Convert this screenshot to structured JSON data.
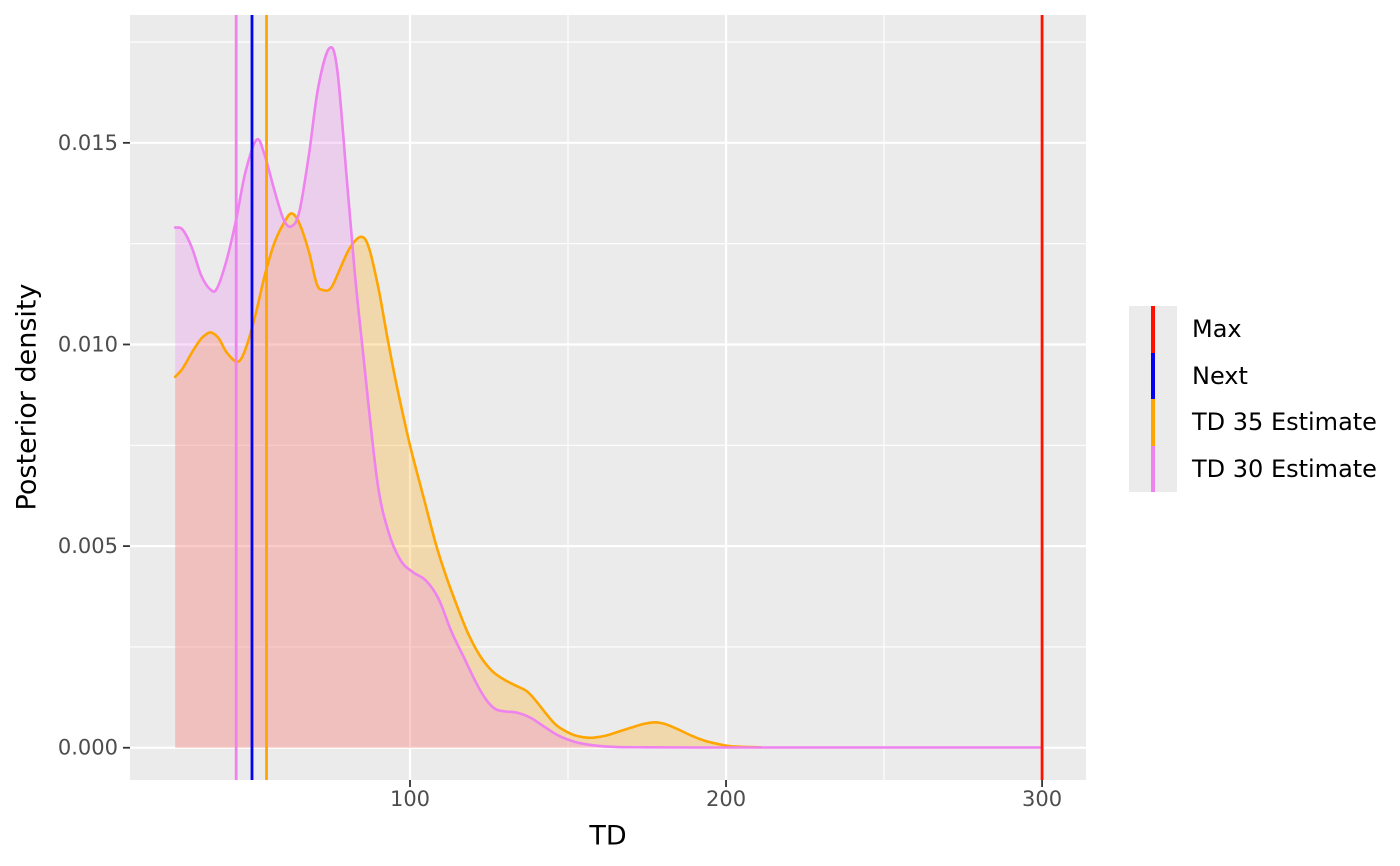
{
  "figure": {
    "x_axis": {
      "title": "TD",
      "tick_labels": [
        "100",
        "200",
        "300"
      ]
    },
    "y_axis": {
      "title": "Posterior density",
      "tick_labels": [
        "0.000",
        "0.005",
        "0.010",
        "0.015"
      ]
    }
  },
  "legend": {
    "entries": [
      {
        "label": "Max",
        "color": "#FF1100"
      },
      {
        "label": "Next",
        "color": "#0202EE"
      },
      {
        "label": "TD 35 Estimate",
        "color": "#FFA502"
      },
      {
        "label": "TD 30 Estimate",
        "color": "#EE82EE"
      }
    ],
    "key_background": "#EBEBEB"
  },
  "colors": {
    "panel_background": "#EBEBEB",
    "gridline": "#FFFFFF",
    "axis_text": "#4D4D4D",
    "tick_mark": "#333333",
    "outer_background": "#FFFFFF"
  },
  "chart_data": {
    "type": "area",
    "title": "",
    "xlabel": "TD",
    "ylabel": "Posterior density",
    "xlim": [
      11.4,
      313.9
    ],
    "ylim": [
      -0.0008,
      0.01817
    ],
    "x_breaks": [
      100,
      200,
      300
    ],
    "x_minor_breaks": [
      50,
      150,
      250
    ],
    "y_breaks": [
      0,
      0.005,
      0.01,
      0.015
    ],
    "y_minor_breaks": [
      0.0025,
      0.0075,
      0.0125,
      0.0175
    ],
    "grid": true,
    "legend_position": "right",
    "vlines": [
      {
        "name": "Max",
        "x": 300,
        "color": "#FF1100"
      },
      {
        "name": "Next",
        "x": 50,
        "color": "#0202EE"
      },
      {
        "name": "TD 35 Estimate",
        "x": 54.6,
        "color": "#FFA502"
      },
      {
        "name": "TD 30 Estimate",
        "x": 45,
        "color": "#EE82EE"
      }
    ],
    "series": [
      {
        "name": "TD 35 Estimate",
        "color": "#FFA502",
        "fill_alpha": 0.27,
        "points": [
          [
            25.7,
            0.0092
          ],
          [
            28,
            0.0094
          ],
          [
            31,
            0.0098
          ],
          [
            34,
            0.01015
          ],
          [
            36.8,
            0.0103
          ],
          [
            39.5,
            0.01015
          ],
          [
            42,
            0.0098
          ],
          [
            45.5,
            0.00957
          ],
          [
            48,
            0.0099
          ],
          [
            51,
            0.0107
          ],
          [
            54,
            0.0117
          ],
          [
            57,
            0.0125
          ],
          [
            60,
            0.013
          ],
          [
            62.5,
            0.01325
          ],
          [
            65,
            0.013
          ],
          [
            68,
            0.0123
          ],
          [
            70.5,
            0.0115
          ],
          [
            72.5,
            0.01135
          ],
          [
            75,
            0.0114
          ],
          [
            78,
            0.0119
          ],
          [
            81,
            0.0124
          ],
          [
            84.5,
            0.01267
          ],
          [
            87,
            0.0124
          ],
          [
            90,
            0.0114
          ],
          [
            93,
            0.0101
          ],
          [
            96,
            0.0089
          ],
          [
            100,
            0.0075
          ],
          [
            104,
            0.0063
          ],
          [
            108,
            0.0051
          ],
          [
            111,
            0.00435
          ],
          [
            114,
            0.0037
          ],
          [
            118,
            0.0029
          ],
          [
            122,
            0.0023
          ],
          [
            126,
            0.0019
          ],
          [
            130,
            0.00168
          ],
          [
            134,
            0.00152
          ],
          [
            137,
            0.0014
          ],
          [
            140,
            0.00115
          ],
          [
            143,
            0.00085
          ],
          [
            146,
            0.00058
          ],
          [
            149,
            0.00042
          ],
          [
            152,
            0.00031
          ],
          [
            155,
            0.00026
          ],
          [
            158,
            0.00025
          ],
          [
            162,
            0.0003
          ],
          [
            166,
            0.0004
          ],
          [
            170,
            0.0005
          ],
          [
            174,
            0.00059
          ],
          [
            177.5,
            0.00063
          ],
          [
            181,
            0.00058
          ],
          [
            185,
            0.00045
          ],
          [
            189,
            0.0003
          ],
          [
            193,
            0.00018
          ],
          [
            197,
            0.0001
          ],
          [
            201,
            4e-05
          ],
          [
            206,
            2e-05
          ],
          [
            211,
            1e-05
          ]
        ]
      },
      {
        "name": "TD 30 Estimate",
        "color": "#EE82EE",
        "fill_alpha": 0.27,
        "points": [
          [
            25.7,
            0.0129
          ],
          [
            28,
            0.01285
          ],
          [
            31,
            0.0124
          ],
          [
            34,
            0.0117
          ],
          [
            37,
            0.01135
          ],
          [
            39,
            0.0114
          ],
          [
            42,
            0.0121
          ],
          [
            45,
            0.0131
          ],
          [
            48,
            0.0143
          ],
          [
            51.5,
            0.01508
          ],
          [
            54,
            0.0147
          ],
          [
            57,
            0.01385
          ],
          [
            60,
            0.0131
          ],
          [
            62.5,
            0.01293
          ],
          [
            65,
            0.0133
          ],
          [
            68,
            0.0147
          ],
          [
            71,
            0.0164
          ],
          [
            74.5,
            0.01735
          ],
          [
            77,
            0.0168
          ],
          [
            80,
            0.0141
          ],
          [
            82.5,
            0.0118
          ],
          [
            85,
            0.0099
          ],
          [
            89.5,
            0.0067
          ],
          [
            93,
            0.0054
          ],
          [
            97,
            0.00465
          ],
          [
            101,
            0.00435
          ],
          [
            105,
            0.00415
          ],
          [
            109,
            0.0037
          ],
          [
            113,
            0.0029
          ],
          [
            117,
            0.00225
          ],
          [
            121,
            0.0016
          ],
          [
            124,
            0.0012
          ],
          [
            127,
            0.00096
          ],
          [
            130,
            0.0009
          ],
          [
            134,
            0.00087
          ],
          [
            138,
            0.00075
          ],
          [
            142,
            0.00055
          ],
          [
            147,
            0.0003
          ],
          [
            152,
            0.00015
          ],
          [
            158,
            6e-05
          ],
          [
            165,
            2e-05
          ],
          [
            175,
            1e-05
          ],
          [
            190,
            5e-06
          ],
          [
            210,
            5e-06
          ],
          [
            240,
            5e-06
          ],
          [
            270,
            5e-06
          ],
          [
            300,
            5e-06
          ]
        ]
      }
    ]
  }
}
